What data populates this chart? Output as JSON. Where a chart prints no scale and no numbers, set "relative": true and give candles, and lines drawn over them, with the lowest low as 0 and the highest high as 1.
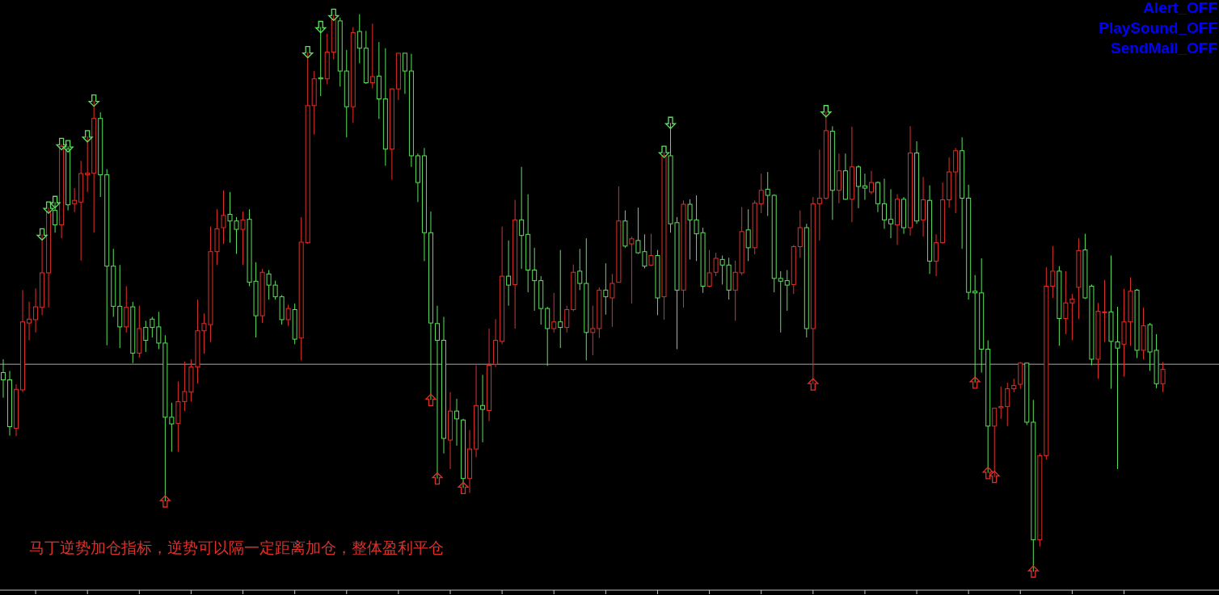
{
  "chart_data": {
    "type": "candlestick",
    "relative": true,
    "categories": [
      null,
      null,
      null,
      null,
      null,
      null,
      null,
      null,
      null,
      null,
      null,
      null,
      null,
      null,
      null,
      null,
      null,
      null,
      null,
      null,
      null,
      null,
      null,
      null,
      null,
      null,
      null,
      null,
      null,
      null,
      null,
      null,
      null,
      null,
      null,
      null,
      null,
      null,
      null,
      null,
      null,
      null,
      null,
      null,
      null,
      null,
      null,
      null,
      null,
      null,
      null,
      null,
      null,
      null,
      null,
      null,
      null,
      null,
      null,
      null,
      null,
      null,
      null,
      null,
      null,
      null,
      null,
      null,
      null,
      null,
      null,
      null,
      null,
      null,
      null,
      null,
      null,
      null,
      null,
      null,
      null,
      null,
      null,
      null,
      null,
      null,
      null,
      null,
      null,
      null,
      null,
      null,
      null,
      null,
      null,
      null,
      null,
      null,
      null,
      null,
      null,
      null,
      null,
      null,
      null,
      null,
      null,
      null,
      null,
      null,
      null,
      null,
      null,
      null,
      null,
      null,
      null,
      null,
      null,
      null,
      null,
      null,
      null,
      null,
      null,
      null,
      null,
      null,
      null,
      null,
      null,
      null,
      null,
      null,
      null,
      null,
      null,
      null,
      null,
      null,
      null,
      null,
      null,
      null,
      null,
      null,
      null,
      null,
      null,
      null,
      null,
      null,
      null,
      null,
      null,
      null,
      null,
      null,
      null,
      null,
      null,
      null,
      null,
      null,
      null,
      null,
      null,
      null,
      null,
      null,
      null,
      null,
      null,
      null,
      null,
      null,
      null,
      null,
      null,
      null
    ],
    "ohlc": [
      [
        0.357,
        0.381,
        0.312,
        0.344
      ],
      [
        0.344,
        0.36,
        0.244,
        0.26
      ],
      [
        0.257,
        0.336,
        0.243,
        0.327
      ],
      [
        0.326,
        0.505,
        0.322,
        0.448
      ],
      [
        0.446,
        0.484,
        0.415,
        0.453
      ],
      [
        0.452,
        0.508,
        0.429,
        0.475
      ],
      [
        0.474,
        0.605,
        0.46,
        0.536
      ],
      [
        0.536,
        0.653,
        0.474,
        0.646
      ],
      [
        0.648,
        0.663,
        0.608,
        0.622
      ],
      [
        0.622,
        0.767,
        0.598,
        0.763
      ],
      [
        0.758,
        0.763,
        0.648,
        0.658
      ],
      [
        0.66,
        0.688,
        0.645,
        0.666
      ],
      [
        0.663,
        0.737,
        0.558,
        0.714
      ],
      [
        0.712,
        0.781,
        0.681,
        0.715
      ],
      [
        0.715,
        0.845,
        0.608,
        0.813
      ],
      [
        0.813,
        0.824,
        0.672,
        0.712
      ],
      [
        0.712,
        0.722,
        0.406,
        0.548
      ],
      [
        0.548,
        0.579,
        0.457,
        0.476
      ],
      [
        0.476,
        0.55,
        0.401,
        0.439
      ],
      [
        0.439,
        0.512,
        0.429,
        0.474
      ],
      [
        0.475,
        0.484,
        0.374,
        0.392
      ],
      [
        0.392,
        0.477,
        0.384,
        0.436
      ],
      [
        0.438,
        0.45,
        0.394,
        0.415
      ],
      [
        0.453,
        0.457,
        0.42,
        0.438
      ],
      [
        0.439,
        0.466,
        0.399,
        0.41
      ],
      [
        0.41,
        0.424,
        0.126,
        0.277
      ],
      [
        0.277,
        0.303,
        0.215,
        0.265
      ],
      [
        0.266,
        0.341,
        0.215,
        0.305
      ],
      [
        0.305,
        0.377,
        0.288,
        0.323
      ],
      [
        0.322,
        0.381,
        0.305,
        0.367
      ],
      [
        0.367,
        0.488,
        0.337,
        0.432
      ],
      [
        0.432,
        0.463,
        0.391,
        0.445
      ],
      [
        0.443,
        0.619,
        0.412,
        0.574
      ],
      [
        0.574,
        0.65,
        0.55,
        0.615
      ],
      [
        0.617,
        0.684,
        0.588,
        0.639
      ],
      [
        0.641,
        0.681,
        0.59,
        0.629
      ],
      [
        0.629,
        0.636,
        0.57,
        0.614
      ],
      [
        0.614,
        0.646,
        0.55,
        0.631
      ],
      [
        0.632,
        0.65,
        0.512,
        0.519
      ],
      [
        0.521,
        0.555,
        0.42,
        0.459
      ],
      [
        0.459,
        0.543,
        0.446,
        0.537
      ],
      [
        0.534,
        0.541,
        0.488,
        0.514
      ],
      [
        0.514,
        0.522,
        0.488,
        0.493
      ],
      [
        0.493,
        0.496,
        0.443,
        0.452
      ],
      [
        0.452,
        0.479,
        0.441,
        0.472
      ],
      [
        0.47,
        0.481,
        0.408,
        0.417
      ],
      [
        0.419,
        0.636,
        0.379,
        0.591
      ],
      [
        0.59,
        0.932,
        0.588,
        0.836
      ],
      [
        0.836,
        0.898,
        0.784,
        0.884
      ],
      [
        0.886,
        0.977,
        0.853,
        0.884
      ],
      [
        0.884,
        0.965,
        0.874,
        0.932
      ],
      [
        0.932,
        0.999,
        0.919,
        0.99
      ],
      [
        0.988,
        0.994,
        0.87,
        0.898
      ],
      [
        0.898,
        0.936,
        0.779,
        0.834
      ],
      [
        0.834,
        0.977,
        0.805,
        0.967
      ],
      [
        0.969,
        1.0,
        0.912,
        0.939
      ],
      [
        0.939,
        0.97,
        0.875,
        0.877
      ],
      [
        0.877,
        0.983,
        0.867,
        0.888
      ],
      [
        0.889,
        0.95,
        0.812,
        0.848
      ],
      [
        0.848,
        0.939,
        0.728,
        0.758
      ],
      [
        0.758,
        0.867,
        0.703,
        0.866
      ],
      [
        0.866,
        0.93,
        0.846,
        0.93
      ],
      [
        0.93,
        0.93,
        0.857,
        0.898
      ],
      [
        0.898,
        0.929,
        0.726,
        0.746
      ],
      [
        0.746,
        0.75,
        0.663,
        0.698
      ],
      [
        0.746,
        0.76,
        0.557,
        0.608
      ],
      [
        0.608,
        0.646,
        0.308,
        0.446
      ],
      [
        0.445,
        0.477,
        0.167,
        0.415
      ],
      [
        0.415,
        0.457,
        0.212,
        0.239
      ],
      [
        0.236,
        0.322,
        0.184,
        0.288
      ],
      [
        0.288,
        0.31,
        0.226,
        0.274
      ],
      [
        0.272,
        0.274,
        0.15,
        0.167
      ],
      [
        0.167,
        0.254,
        0.141,
        0.22
      ],
      [
        0.22,
        0.37,
        0.205,
        0.298
      ],
      [
        0.298,
        0.353,
        0.232,
        0.291
      ],
      [
        0.289,
        0.436,
        0.27,
        0.37
      ],
      [
        0.372,
        0.453,
        0.367,
        0.415
      ],
      [
        0.413,
        0.619,
        0.408,
        0.53
      ],
      [
        0.53,
        0.594,
        0.477,
        0.514
      ],
      [
        0.515,
        0.667,
        0.436,
        0.631
      ],
      [
        0.631,
        0.726,
        0.543,
        0.603
      ],
      [
        0.605,
        0.677,
        0.501,
        0.541
      ],
      [
        0.541,
        0.581,
        0.468,
        0.522
      ],
      [
        0.522,
        0.53,
        0.443,
        0.472
      ],
      [
        0.472,
        0.475,
        0.369,
        0.436
      ],
      [
        0.436,
        0.5,
        0.429,
        0.448
      ],
      [
        0.448,
        0.577,
        0.401,
        0.438
      ],
      [
        0.438,
        0.477,
        0.429,
        0.47
      ],
      [
        0.47,
        0.551,
        0.467,
        0.537
      ],
      [
        0.539,
        0.579,
        0.505,
        0.517
      ],
      [
        0.517,
        0.598,
        0.379,
        0.429
      ],
      [
        0.429,
        0.477,
        0.388,
        0.436
      ],
      [
        0.436,
        0.51,
        0.419,
        0.505
      ],
      [
        0.505,
        0.553,
        0.461,
        0.493
      ],
      [
        0.491,
        0.534,
        0.439,
        0.517
      ],
      [
        0.519,
        0.691,
        0.519,
        0.629
      ],
      [
        0.629,
        0.648,
        0.581,
        0.584
      ],
      [
        0.588,
        0.601,
        0.481,
        0.597
      ],
      [
        0.594,
        0.653,
        0.57,
        0.572
      ],
      [
        0.574,
        0.605,
        0.544,
        0.548
      ],
      [
        0.55,
        0.606,
        0.548,
        0.567
      ],
      [
        0.567,
        0.577,
        0.46,
        0.491
      ],
      [
        0.493,
        0.753,
        0.452,
        0.746
      ],
      [
        0.746,
        0.805,
        0.608,
        0.624
      ],
      [
        0.626,
        0.636,
        0.399,
        0.505
      ],
      [
        0.505,
        0.666,
        0.474,
        0.659
      ],
      [
        0.659,
        0.668,
        0.56,
        0.631
      ],
      [
        0.631,
        0.675,
        0.557,
        0.606
      ],
      [
        0.608,
        0.617,
        0.5,
        0.512
      ],
      [
        0.512,
        0.577,
        0.51,
        0.536
      ],
      [
        0.537,
        0.572,
        0.53,
        0.562
      ],
      [
        0.56,
        0.567,
        0.515,
        0.55
      ],
      [
        0.55,
        0.563,
        0.488,
        0.505
      ],
      [
        0.505,
        0.558,
        0.45,
        0.537
      ],
      [
        0.536,
        0.654,
        0.532,
        0.61
      ],
      [
        0.613,
        0.65,
        0.557,
        0.581
      ],
      [
        0.581,
        0.666,
        0.569,
        0.661
      ],
      [
        0.66,
        0.714,
        0.643,
        0.684
      ],
      [
        0.686,
        0.717,
        0.638,
        0.675
      ],
      [
        0.675,
        0.677,
        0.501,
        0.526
      ],
      [
        0.526,
        0.539,
        0.429,
        0.521
      ],
      [
        0.522,
        0.541,
        0.468,
        0.514
      ],
      [
        0.515,
        0.586,
        0.498,
        0.583
      ],
      [
        0.583,
        0.648,
        0.563,
        0.617
      ],
      [
        0.617,
        0.624,
        0.42,
        0.436
      ],
      [
        0.436,
        0.672,
        0.336,
        0.66
      ],
      [
        0.66,
        0.757,
        0.594,
        0.67
      ],
      [
        0.67,
        0.826,
        0.667,
        0.791
      ],
      [
        0.79,
        0.799,
        0.631,
        0.684
      ],
      [
        0.684,
        0.75,
        0.661,
        0.719
      ],
      [
        0.719,
        0.75,
        0.667,
        0.668
      ],
      [
        0.668,
        0.798,
        0.627,
        0.726
      ],
      [
        0.726,
        0.729,
        0.652,
        0.691
      ],
      [
        0.692,
        0.714,
        0.667,
        0.688
      ],
      [
        0.681,
        0.719,
        0.677,
        0.698
      ],
      [
        0.698,
        0.7,
        0.645,
        0.66
      ],
      [
        0.66,
        0.705,
        0.615,
        0.631
      ],
      [
        0.632,
        0.686,
        0.598,
        0.624
      ],
      [
        0.622,
        0.677,
        0.586,
        0.668
      ],
      [
        0.668,
        0.672,
        0.606,
        0.617
      ],
      [
        0.617,
        0.799,
        0.603,
        0.751
      ],
      [
        0.751,
        0.772,
        0.624,
        0.629
      ],
      [
        0.631,
        0.708,
        0.601,
        0.667
      ],
      [
        0.666,
        0.693,
        0.534,
        0.557
      ],
      [
        0.557,
        0.605,
        0.53,
        0.59
      ],
      [
        0.59,
        0.698,
        0.588,
        0.667
      ],
      [
        0.667,
        0.743,
        0.653,
        0.717
      ],
      [
        0.717,
        0.76,
        0.643,
        0.755
      ],
      [
        0.755,
        0.779,
        0.579,
        0.67
      ],
      [
        0.67,
        0.694,
        0.488,
        0.501
      ],
      [
        0.503,
        0.532,
        0.339,
        0.5
      ],
      [
        0.5,
        0.562,
        0.357,
        0.399
      ],
      [
        0.399,
        0.415,
        0.177,
        0.261
      ],
      [
        0.261,
        0.293,
        0.17,
        0.293
      ],
      [
        0.294,
        0.332,
        0.274,
        0.296
      ],
      [
        0.296,
        0.339,
        0.261,
        0.328
      ],
      [
        0.328,
        0.346,
        0.322,
        0.334
      ],
      [
        0.336,
        0.376,
        0.328,
        0.374
      ],
      [
        0.374,
        0.374,
        0.263,
        0.268
      ],
      [
        0.268,
        0.308,
        0.0,
        0.057
      ],
      [
        0.057,
        0.212,
        0.045,
        0.208
      ],
      [
        0.208,
        0.546,
        0.201,
        0.512
      ],
      [
        0.512,
        0.584,
        0.491,
        0.539
      ],
      [
        0.539,
        0.548,
        0.405,
        0.454
      ],
      [
        0.454,
        0.539,
        0.426,
        0.482
      ],
      [
        0.482,
        0.498,
        0.415,
        0.489
      ],
      [
        0.51,
        0.598,
        0.453,
        0.576
      ],
      [
        0.577,
        0.606,
        0.489,
        0.491
      ],
      [
        0.512,
        0.515,
        0.37,
        0.381
      ],
      [
        0.381,
        0.482,
        0.346,
        0.467
      ],
      [
        0.466,
        0.523,
        0.412,
        0.466
      ],
      [
        0.466,
        0.567,
        0.328,
        0.413
      ],
      [
        0.412,
        0.475,
        0.184,
        0.401
      ],
      [
        0.408,
        0.507,
        0.35,
        0.448
      ],
      [
        0.448,
        0.528,
        0.405,
        0.503
      ],
      [
        0.505,
        0.507,
        0.383,
        0.397
      ],
      [
        0.397,
        0.474,
        0.381,
        0.441
      ],
      [
        0.443,
        0.446,
        0.36,
        0.394
      ],
      [
        0.397,
        0.426,
        0.329,
        0.337
      ],
      [
        0.337,
        0.376,
        0.322,
        0.363
      ]
    ],
    "colors": [
      "#5ee05e",
      "#5ee05e",
      "#e0302a",
      "#e0302a",
      "#e0302a",
      "#e0302a",
      "#e0302a",
      "#e0302a",
      "#5ee05e",
      "#e0302a",
      "#5ee05e",
      "#e0302a",
      "#e0302a",
      "#e0302a",
      "#e0302a",
      "#5ee05e",
      "#5ee05e",
      "#5ee05e",
      "#5ee05e",
      "#e0302a",
      "#5ee05e",
      "#e0302a",
      "#5ee05e",
      "#5ee05e",
      "#5ee05e",
      "#5ee05e",
      "#5ee05e",
      "#e0302a",
      "#e0302a",
      "#e0302a",
      "#e0302a",
      "#e0302a",
      "#e0302a",
      "#e0302a",
      "#e0302a",
      "#5ee05e",
      "#5ee05e",
      "#e0302a",
      "#5ee05e",
      "#5ee05e",
      "#e0302a",
      "#5ee05e",
      "#5ee05e",
      "#5ee05e",
      "#e0302a",
      "#5ee05e",
      "#e0302a",
      "#e0302a",
      "#e0302a",
      "#5ee05e",
      "#e0302a",
      "#e0302a",
      "#5ee05e",
      "#5ee05e",
      "#e0302a",
      "#5ee05e",
      "#5ee05e",
      "#e0302a",
      "#5ee05e",
      "#5ee05e",
      "#e0302a",
      "#e0302a",
      "#5ee05e",
      "#5ee05e",
      "#5ee05e",
      "#5ee05e",
      "#5ee05e",
      "#5ee05e",
      "#5ee05e",
      "#e0302a",
      "#5ee05e",
      "#5ee05e",
      "#e0302a",
      "#e0302a",
      "#5ee05e",
      "#e0302a",
      "#e0302a",
      "#e0302a",
      "#5ee05e",
      "#e0302a",
      "#5ee05e",
      "#5ee05e",
      "#5ee05e",
      "#5ee05e",
      "#5ee05e",
      "#e0302a",
      "#5ee05e",
      "#e0302a",
      "#e0302a",
      "#5ee05e",
      "#5ee05e",
      "#e0302a",
      "#e0302a",
      "#5ee05e",
      "#e0302a",
      "#e0302a",
      "#5ee05e",
      "#e0302a",
      "#5ee05e",
      "#5ee05e",
      "#e0302a",
      "#5ee05e",
      "#e0302a",
      "#5ee05e",
      "#5ee05e",
      "#e0302a",
      "#5ee05e",
      "#5ee05e",
      "#5ee05e",
      "#e0302a",
      "#e0302a",
      "#5ee05e",
      "#5ee05e",
      "#e0302a",
      "#e0302a",
      "#5ee05e",
      "#e0302a",
      "#e0302a",
      "#5ee05e",
      "#5ee05e",
      "#5ee05e",
      "#5ee05e",
      "#e0302a",
      "#e0302a",
      "#5ee05e",
      "#e0302a",
      "#e0302a",
      "#e0302a",
      "#5ee05e",
      "#e0302a",
      "#5ee05e",
      "#e0302a",
      "#5ee05e",
      "#5ee05e",
      "#e0302a",
      "#5ee05e",
      "#5ee05e",
      "#5ee05e",
      "#e0302a",
      "#5ee05e",
      "#e0302a",
      "#5ee05e",
      "#e0302a",
      "#5ee05e",
      "#e0302a",
      "#e0302a",
      "#e0302a",
      "#e0302a",
      "#5ee05e",
      "#5ee05e",
      "#5ee05e",
      "#5ee05e",
      "#5ee05e",
      "#e0302a",
      "#e0302a",
      "#e0302a",
      "#e0302a",
      "#e0302a",
      "#5ee05e",
      "#5ee05e",
      "#e0302a",
      "#e0302a",
      "#e0302a",
      "#5ee05e",
      "#e0302a",
      "#e0302a",
      "#e0302a",
      "#5ee05e",
      "#5ee05e",
      "#e0302a",
      "#e0302a",
      "#5ee05e",
      "#5ee05e",
      "#e0302a",
      "#e0302a",
      "#5ee05e",
      "#e0302a",
      "#5ee05e",
      "#5ee05e",
      "#e0302a"
    ],
    "series": [
      {
        "type": "scatter",
        "color": "#5ee05e",
        "values": [
          null,
          null,
          null,
          null,
          null,
          null,
          0.605,
          0.653,
          0.663,
          0.767,
          0.763,
          null,
          null,
          0.781,
          0.845,
          null,
          null,
          null,
          null,
          null,
          null,
          null,
          null,
          null,
          null,
          null,
          null,
          null,
          null,
          null,
          null,
          null,
          null,
          null,
          null,
          null,
          null,
          null,
          null,
          null,
          null,
          null,
          null,
          null,
          null,
          null,
          null,
          0.932,
          null,
          0.977,
          null,
          0.999,
          null,
          null,
          null,
          null,
          null,
          null,
          null,
          null,
          null,
          null,
          null,
          null,
          null,
          null,
          null,
          null,
          null,
          null,
          null,
          null,
          null,
          null,
          null,
          null,
          null,
          null,
          null,
          null,
          null,
          null,
          null,
          null,
          null,
          null,
          null,
          null,
          null,
          null,
          null,
          null,
          null,
          null,
          null,
          null,
          null,
          null,
          null,
          null,
          null,
          null,
          0.753,
          0.805,
          null,
          null,
          null,
          null,
          null,
          null,
          null,
          null,
          null,
          null,
          null,
          null,
          null,
          null,
          null,
          null,
          null,
          null,
          null,
          null,
          null,
          null,
          null,
          0.826,
          null,
          null,
          null,
          null,
          null,
          null,
          null,
          null,
          null,
          null,
          null,
          null,
          null,
          null,
          null,
          null,
          null,
          null,
          null,
          null,
          null,
          null,
          null,
          null,
          null,
          null,
          null,
          null,
          null,
          null,
          null,
          null,
          null,
          null,
          null,
          null,
          null,
          null,
          null,
          null,
          null,
          null,
          null,
          null,
          null,
          null,
          null,
          null,
          null,
          null,
          null,
          null
        ]
      },
      {
        "type": "scatter",
        "color": "#e0302a",
        "values": [
          null,
          null,
          null,
          null,
          null,
          null,
          null,
          null,
          null,
          null,
          null,
          null,
          null,
          null,
          null,
          null,
          null,
          null,
          null,
          null,
          null,
          null,
          null,
          null,
          null,
          0.126,
          null,
          null,
          null,
          null,
          null,
          null,
          null,
          null,
          null,
          null,
          null,
          null,
          null,
          null,
          null,
          null,
          null,
          null,
          null,
          null,
          null,
          null,
          null,
          null,
          null,
          null,
          null,
          null,
          null,
          null,
          null,
          null,
          null,
          null,
          null,
          null,
          null,
          null,
          null,
          null,
          0.308,
          0.167,
          null,
          null,
          null,
          0.15,
          null,
          null,
          null,
          null,
          null,
          null,
          null,
          null,
          null,
          null,
          null,
          null,
          null,
          null,
          null,
          null,
          null,
          null,
          null,
          null,
          null,
          null,
          null,
          null,
          null,
          null,
          null,
          null,
          null,
          null,
          null,
          null,
          null,
          null,
          null,
          null,
          null,
          null,
          null,
          null,
          null,
          null,
          null,
          null,
          null,
          null,
          null,
          null,
          null,
          null,
          null,
          null,
          null,
          0.336,
          null,
          null,
          null,
          null,
          null,
          null,
          null,
          null,
          null,
          null,
          null,
          null,
          null,
          null,
          null,
          null,
          null,
          null,
          null,
          null,
          null,
          null,
          null,
          null,
          0.339,
          null,
          0.177,
          0.17,
          null,
          null,
          null,
          null,
          null,
          0.0,
          null,
          null,
          null,
          null,
          null,
          null,
          null,
          null,
          null,
          null,
          null,
          null,
          null,
          null,
          null,
          null,
          null,
          null,
          null,
          null
        ]
      }
    ],
    "ref_lines": [
      {
        "axis": "y",
        "value": 0.372,
        "color": "#a8a8a8"
      }
    ],
    "annotations": [
      "马丁逆势加仓指标，逆势可以隔一定距离加仓，整体盈利平仓",
      "Alert_OFF",
      "PlaySound_OFF",
      "SendMail_OFF"
    ]
  }
}
